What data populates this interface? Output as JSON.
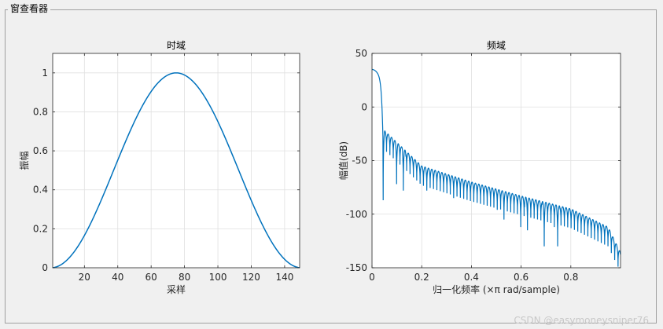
{
  "window": {
    "panel_title": "窗查看器"
  },
  "watermark": "CSDN @easymoneysniper76",
  "chart_data": [
    {
      "type": "line",
      "title": "时域",
      "xlabel": "采样",
      "ylabel": "振幅",
      "xlim": [
        1,
        149
      ],
      "ylim": [
        0,
        1.1
      ],
      "xticks": [
        20,
        40,
        60,
        80,
        100,
        120,
        140
      ],
      "yticks": [
        0,
        0.2,
        0.4,
        0.6,
        0.8,
        1
      ],
      "ytick_labels": [
        "0",
        "0.2",
        "0.4",
        "0.6",
        "0.8",
        "1"
      ],
      "grid": true,
      "color": "#0072bd",
      "series": [
        {
          "window": "hann",
          "length": 149
        }
      ]
    },
    {
      "type": "line",
      "title": "频域",
      "xlabel": "归一化频率  (×π rad/sample)",
      "ylabel": "幅值(dB)",
      "xlim": [
        0,
        1
      ],
      "ylim": [
        -150,
        50
      ],
      "xticks": [
        0,
        0.2,
        0.4,
        0.6,
        0.8
      ],
      "xtick_labels": [
        "0",
        "0.2",
        "0.4",
        "0.6",
        "0.8"
      ],
      "yticks": [
        50,
        0,
        -50,
        -100,
        -150
      ],
      "grid": true,
      "color": "#0072bd",
      "series": [
        {
          "mainlobe_peak_db": 35,
          "first_null_freq": 0.045,
          "first_null_db": -87,
          "sidelobe_envelope": [
            [
              0.05,
              -22
            ],
            [
              0.2,
              -55
            ],
            [
              0.4,
              -70
            ],
            [
              0.6,
              -83
            ],
            [
              0.8,
              -95
            ],
            [
              0.95,
              -112
            ],
            [
              1.0,
              -136
            ]
          ],
          "deep_nulls": [
            [
              0.045,
              -87
            ],
            [
              0.1,
              -72
            ],
            [
              0.13,
              -78
            ],
            [
              0.22,
              -78
            ],
            [
              0.33,
              -85
            ],
            [
              0.5,
              -96
            ],
            [
              0.53,
              -105
            ],
            [
              0.6,
              -112
            ],
            [
              0.62,
              -115
            ],
            [
              0.69,
              -130
            ],
            [
              0.74,
              -112
            ],
            [
              0.75,
              -130
            ],
            [
              0.87,
              -118
            ],
            [
              0.89,
              -116
            ],
            [
              0.95,
              -128
            ],
            [
              0.99,
              -135
            ]
          ]
        }
      ]
    }
  ]
}
